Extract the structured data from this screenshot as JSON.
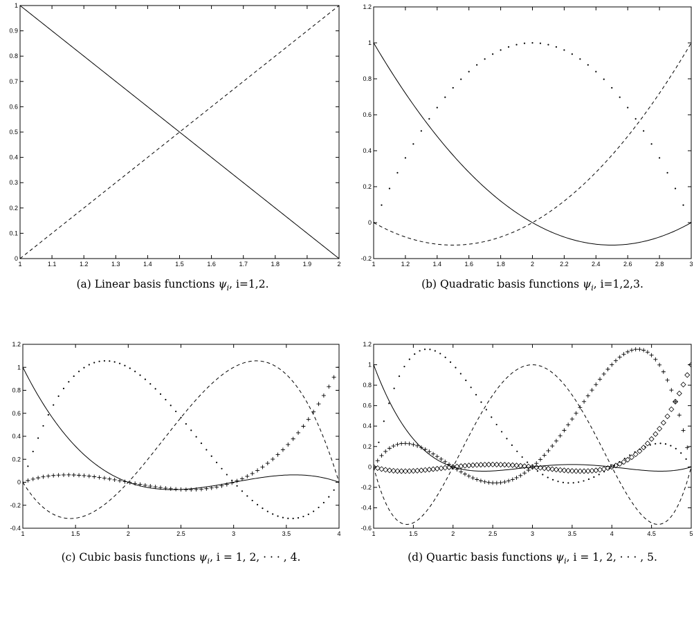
{
  "chart_data": [
    {
      "type": "line",
      "caption": {
        "prefix": "(a) Linear basis functions ",
        "sym": "ψ",
        "sub": "i",
        "suffix": ", i=1,2."
      },
      "xlim": [
        1,
        2
      ],
      "ylim": [
        0,
        1
      ],
      "xticks": [
        "1",
        "1.1",
        "1.2",
        "1.3",
        "1.4",
        "1.5",
        "1.6",
        "1.7",
        "1.8",
        "1.9",
        "2"
      ],
      "xtick_values": [
        1,
        1.1,
        1.2,
        1.3,
        1.4,
        1.5,
        1.6,
        1.7,
        1.8,
        1.9,
        2
      ],
      "yticks": [
        "0",
        "0.1",
        "0.2",
        "0.3",
        "0.4",
        "0.5",
        "0.6",
        "0.7",
        "0.8",
        "0.9",
        "1"
      ],
      "ytick_values": [
        0,
        0.1,
        0.2,
        0.3,
        0.4,
        0.5,
        0.6,
        0.7,
        0.8,
        0.9,
        1
      ],
      "nodes": [
        1,
        2
      ],
      "series": [
        {
          "index": 1,
          "style": "solid"
        },
        {
          "index": 2,
          "style": "dashed"
        }
      ]
    },
    {
      "type": "line",
      "caption": {
        "prefix": "(b) Quadratic basis functions ",
        "sym": "ψ",
        "sub": "i",
        "suffix": ", i=1,2,3."
      },
      "xlim": [
        1,
        3
      ],
      "ylim": [
        -0.2,
        1.2
      ],
      "xticks": [
        "1",
        "1.2",
        "1.4",
        "1.6",
        "1.8",
        "2",
        "2.2",
        "2.4",
        "2.6",
        "2.8",
        "3"
      ],
      "xtick_values": [
        1,
        1.2,
        1.4,
        1.6,
        1.8,
        2,
        2.2,
        2.4,
        2.6,
        2.8,
        3
      ],
      "yticks": [
        "-0.2",
        "0",
        "0.2",
        "0.4",
        "0.6",
        "0.8",
        "1",
        "1.2"
      ],
      "ytick_values": [
        -0.2,
        0,
        0.2,
        0.4,
        0.6,
        0.8,
        1,
        1.2
      ],
      "nodes": [
        1,
        2,
        3
      ],
      "series": [
        {
          "index": 1,
          "style": "solid"
        },
        {
          "index": 2,
          "style": "dots"
        },
        {
          "index": 3,
          "style": "dashed"
        }
      ]
    },
    {
      "type": "line",
      "caption": {
        "prefix": "(c) Cubic basis functions ",
        "sym": "ψ",
        "sub": "i",
        "suffix": ", i = 1, 2, · · · , 4."
      },
      "xlim": [
        1,
        4
      ],
      "ylim": [
        -0.4,
        1.2
      ],
      "xticks": [
        "1",
        "1.5",
        "2",
        "2.5",
        "3",
        "3.5",
        "4"
      ],
      "xtick_values": [
        1,
        1.5,
        2,
        2.5,
        3,
        3.5,
        4
      ],
      "yticks": [
        "-0.4",
        "-0.2",
        "0",
        "0.2",
        "0.4",
        "0.6",
        "0.8",
        "1",
        "1.2"
      ],
      "ytick_values": [
        -0.4,
        -0.2,
        0,
        0.2,
        0.4,
        0.6,
        0.8,
        1,
        1.2
      ],
      "nodes": [
        1,
        2,
        3,
        4
      ],
      "series": [
        {
          "index": 1,
          "style": "solid"
        },
        {
          "index": 2,
          "style": "dots"
        },
        {
          "index": 3,
          "style": "dashed"
        },
        {
          "index": 4,
          "style": "plus"
        }
      ]
    },
    {
      "type": "line",
      "caption": {
        "prefix": "(d) Quartic basis functions ",
        "sym": "ψ",
        "sub": "i",
        "suffix": ", i = 1, 2, · · · , 5."
      },
      "xlim": [
        1,
        5
      ],
      "ylim": [
        -0.6,
        1.2
      ],
      "xticks": [
        "1",
        "1.5",
        "2",
        "2.5",
        "3",
        "3.5",
        "4",
        "4.5",
        "5"
      ],
      "xtick_values": [
        1,
        1.5,
        2,
        2.5,
        3,
        3.5,
        4,
        4.5,
        5
      ],
      "yticks": [
        "-0.6",
        "-0.4",
        "-0.2",
        "0",
        "0.2",
        "0.4",
        "0.6",
        "0.8",
        "1",
        "1.2"
      ],
      "ytick_values": [
        -0.6,
        -0.4,
        -0.2,
        0,
        0.2,
        0.4,
        0.6,
        0.8,
        1,
        1.2
      ],
      "nodes": [
        1,
        2,
        3,
        4,
        5
      ],
      "series": [
        {
          "index": 1,
          "style": "solid"
        },
        {
          "index": 2,
          "style": "dots"
        },
        {
          "index": 3,
          "style": "dashed"
        },
        {
          "index": 4,
          "style": "plus"
        },
        {
          "index": 5,
          "style": "diamond"
        }
      ]
    }
  ]
}
